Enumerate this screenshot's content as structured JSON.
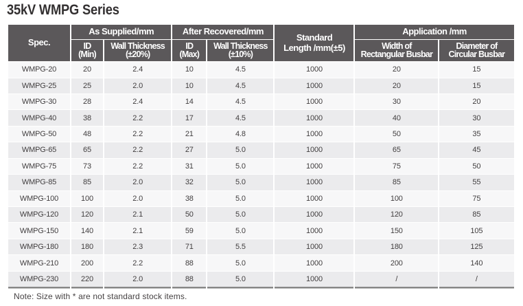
{
  "title": "35kV WMPG Series",
  "note": "Note: Size with * are not standard stock items.",
  "colors": {
    "header_bg": "#5b585a",
    "header_text": "#ffffff",
    "row_light": "#f7f7f8",
    "row_gray": "#ebebed",
    "data_text": "#413e3f",
    "title_text": "#333031",
    "note_text": "#454142",
    "bottom_rule": "#878787"
  },
  "table": {
    "group_headers": {
      "spec": "Spec.",
      "as_supplied": "As Supplied/mm",
      "after_recovered": "After Recovered/mm",
      "standard_length": {
        "line1": "Standard",
        "line2": "Length /mm(±5)"
      },
      "application": "Application /mm"
    },
    "sub_headers": {
      "id_min": {
        "line1": "ID",
        "line2": "(Min)"
      },
      "wall_thickness_20": {
        "line1": "Wall Thickness",
        "line2": "(±20%)"
      },
      "id_max": {
        "line1": "ID",
        "line2": "(Max)"
      },
      "wall_thickness_10": {
        "line1": "Wall Thickness",
        "line2": "(±10%)"
      },
      "width_rectangular": {
        "line1": "Width of",
        "line2": "Rectangular Busbar"
      },
      "diameter_circular": {
        "line1": "Diameter of",
        "line2": "Circular Busbar"
      }
    },
    "rows": [
      [
        "WMPG-20",
        "20",
        "2.4",
        "10",
        "4.5",
        "1000",
        "20",
        "15"
      ],
      [
        "WMPG-25",
        "25",
        "2.0",
        "10",
        "4.5",
        "1000",
        "20",
        "15"
      ],
      [
        "WMPG-30",
        "28",
        "2.4",
        "14",
        "4.5",
        "1000",
        "30",
        "20"
      ],
      [
        "WMPG-40",
        "38",
        "2.2",
        "17",
        "4.5",
        "1000",
        "40",
        "30"
      ],
      [
        "WMPG-50",
        "48",
        "2.2",
        "21",
        "4.8",
        "1000",
        "50",
        "35"
      ],
      [
        "WMPG-65",
        "65",
        "2.2",
        "27",
        "5.0",
        "1000",
        "65",
        "45"
      ],
      [
        "WMPG-75",
        "73",
        "2.2",
        "31",
        "5.0",
        "1000",
        "75",
        "50"
      ],
      [
        "WMPG-85",
        "85",
        "2.0",
        "32",
        "5.0",
        "1000",
        "85",
        "55"
      ],
      [
        "WMPG-100",
        "100",
        "2.0",
        "38",
        "5.0",
        "1000",
        "100",
        "75"
      ],
      [
        "WMPG-120",
        "120",
        "2.1",
        "50",
        "5.0",
        "1000",
        "120",
        "85"
      ],
      [
        "WMPG-150",
        "140",
        "2.1",
        "59",
        "5.0",
        "1000",
        "150",
        "105"
      ],
      [
        "WMPG-180",
        "180",
        "2.3",
        "71",
        "5.5",
        "1000",
        "180",
        "125"
      ],
      [
        "WMPG-210",
        "200",
        "2.2",
        "88",
        "5.0",
        "1000",
        "200",
        "140"
      ],
      [
        "WMPG-230",
        "220",
        "2.0",
        "88",
        "5.0",
        "1000",
        "/",
        "/"
      ]
    ]
  }
}
